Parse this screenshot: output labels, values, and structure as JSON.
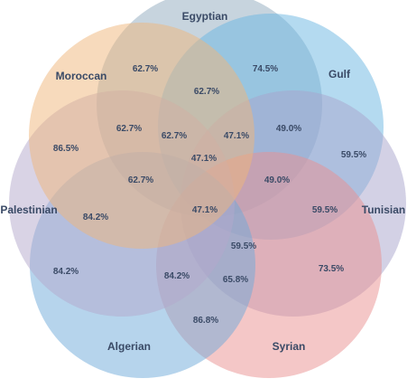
{
  "chart_data": {
    "type": "venn",
    "sets": [
      {
        "name": "Egyptian",
        "color": "#8fa9bd"
      },
      {
        "name": "Gulf",
        "color": "#6ab6e2"
      },
      {
        "name": "Tunisian",
        "color": "#a8a4cc"
      },
      {
        "name": "Syrian",
        "color": "#ea8f8f"
      },
      {
        "name": "Algerian",
        "color": "#6ea9d9"
      },
      {
        "name": "Palestinian",
        "color": "#b4a8cc"
      },
      {
        "name": "Moroccan",
        "color": "#f0b679"
      }
    ],
    "regions": [
      {
        "value": "62.7%"
      },
      {
        "value": "74.5%"
      },
      {
        "value": "62.7%"
      },
      {
        "value": "62.7%"
      },
      {
        "value": "62.7%"
      },
      {
        "value": "47.1%"
      },
      {
        "value": "49.0%"
      },
      {
        "value": "86.5%"
      },
      {
        "value": "47.1%"
      },
      {
        "value": "59.5%"
      },
      {
        "value": "62.7%"
      },
      {
        "value": "49.0%"
      },
      {
        "value": "84.2%"
      },
      {
        "value": "47.1%"
      },
      {
        "value": "59.5%"
      },
      {
        "value": "59.5%"
      },
      {
        "value": "73.5%"
      },
      {
        "value": "84.2%"
      },
      {
        "value": "84.2%"
      },
      {
        "value": "65.8%"
      },
      {
        "value": "86.8%"
      }
    ]
  }
}
